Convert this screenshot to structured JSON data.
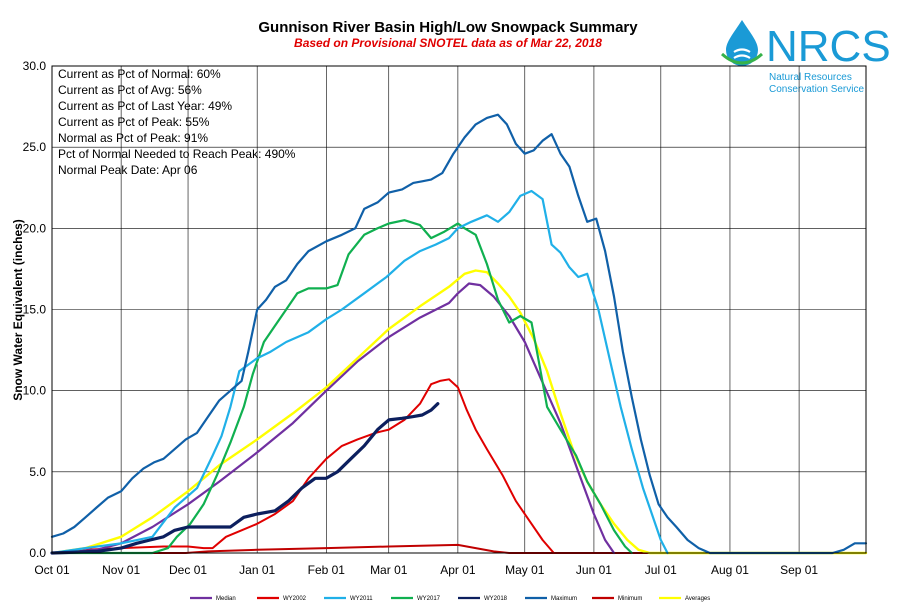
{
  "chart_data": {
    "type": "line",
    "title": "Gunnison River Basin High/Low Snowpack Summary",
    "subtitle": "Based on Provisional SNOTEL data as of Mar 22, 2018",
    "ylabel": "Snow Water Equivalent (inches)",
    "xlabel": "",
    "ylim": [
      0,
      30
    ],
    "yticks": [
      "0.0",
      "5.0",
      "10.0",
      "15.0",
      "20.0",
      "25.0",
      "30.0"
    ],
    "xlim": [
      0,
      365
    ],
    "xticks": [
      {
        "day": 0,
        "label": "Oct 01"
      },
      {
        "day": 31,
        "label": "Nov 01"
      },
      {
        "day": 61,
        "label": "Dec 01"
      },
      {
        "day": 92,
        "label": "Jan 01"
      },
      {
        "day": 123,
        "label": "Feb 01"
      },
      {
        "day": 151,
        "label": "Mar 01"
      },
      {
        "day": 182,
        "label": "Apr 01"
      },
      {
        "day": 212,
        "label": "May 01"
      },
      {
        "day": 243,
        "label": "Jun 01"
      },
      {
        "day": 273,
        "label": "Jul 01"
      },
      {
        "day": 304,
        "label": "Aug 01"
      },
      {
        "day": 335,
        "label": "Sep 01"
      }
    ],
    "grid": true,
    "stats": [
      "Current  as Pct of Normal: 60%",
      "Current  as Pct of Avg: 56%",
      "Current  as Pct of Last Year: 49%",
      "Current  as Pct of Peak: 55%",
      "Normal  as Pct of Peak: 91%",
      "Pct of Normal Needed  to Reach Peak: 490%",
      "Normal  Peak Date: Apr 06"
    ],
    "series": [
      {
        "name": "Median",
        "color": "#7030a0",
        "width": 2.2,
        "points": [
          [
            0,
            0
          ],
          [
            20,
            0.2
          ],
          [
            31,
            0.6
          ],
          [
            45,
            1.6
          ],
          [
            61,
            3.0
          ],
          [
            75,
            4.4
          ],
          [
            92,
            6.2
          ],
          [
            108,
            8.0
          ],
          [
            123,
            10.0
          ],
          [
            137,
            11.8
          ],
          [
            151,
            13.3
          ],
          [
            165,
            14.5
          ],
          [
            178,
            15.4
          ],
          [
            182,
            16.0
          ],
          [
            187,
            16.6
          ],
          [
            192,
            16.5
          ],
          [
            198,
            15.8
          ],
          [
            205,
            14.6
          ],
          [
            212,
            13.0
          ],
          [
            220,
            10.5
          ],
          [
            228,
            8.0
          ],
          [
            236,
            5.0
          ],
          [
            243,
            2.4
          ],
          [
            248,
            0.8
          ],
          [
            252,
            0
          ]
        ]
      },
      {
        "name": "WY2002",
        "color": "#e00000",
        "width": 2,
        "points": [
          [
            0,
            0
          ],
          [
            15,
            0.2
          ],
          [
            31,
            0.3
          ],
          [
            50,
            0.4
          ],
          [
            61,
            0.4
          ],
          [
            68,
            0.3
          ],
          [
            72,
            0.3
          ],
          [
            78,
            1.0
          ],
          [
            85,
            1.4
          ],
          [
            92,
            1.8
          ],
          [
            100,
            2.4
          ],
          [
            108,
            3.2
          ],
          [
            115,
            4.6
          ],
          [
            123,
            5.8
          ],
          [
            130,
            6.6
          ],
          [
            137,
            7.0
          ],
          [
            145,
            7.4
          ],
          [
            151,
            7.6
          ],
          [
            158,
            8.2
          ],
          [
            165,
            9.2
          ],
          [
            170,
            10.4
          ],
          [
            174,
            10.6
          ],
          [
            178,
            10.7
          ],
          [
            182,
            10.2
          ],
          [
            186,
            8.8
          ],
          [
            190,
            7.6
          ],
          [
            195,
            6.4
          ],
          [
            202,
            4.8
          ],
          [
            208,
            3.2
          ],
          [
            215,
            1.8
          ],
          [
            220,
            0.8
          ],
          [
            225,
            0
          ]
        ]
      },
      {
        "name": "WY2011",
        "color": "#20b0e8",
        "width": 2.2,
        "points": [
          [
            0,
            0
          ],
          [
            15,
            0.3
          ],
          [
            31,
            0.6
          ],
          [
            45,
            1.0
          ],
          [
            55,
            2.8
          ],
          [
            65,
            4.0
          ],
          [
            72,
            6.0
          ],
          [
            76,
            7.2
          ],
          [
            80,
            9.0
          ],
          [
            84,
            11.2
          ],
          [
            92,
            12.0
          ],
          [
            98,
            12.4
          ],
          [
            105,
            13.0
          ],
          [
            115,
            13.6
          ],
          [
            123,
            14.4
          ],
          [
            130,
            15.0
          ],
          [
            140,
            16.0
          ],
          [
            150,
            17.0
          ],
          [
            158,
            18.0
          ],
          [
            165,
            18.6
          ],
          [
            172,
            19.0
          ],
          [
            178,
            19.4
          ],
          [
            182,
            20.0
          ],
          [
            188,
            20.4
          ],
          [
            195,
            20.8
          ],
          [
            200,
            20.4
          ],
          [
            205,
            21.0
          ],
          [
            210,
            22.0
          ],
          [
            215,
            22.3
          ],
          [
            220,
            21.8
          ],
          [
            224,
            19.0
          ],
          [
            228,
            18.5
          ],
          [
            232,
            17.6
          ],
          [
            236,
            17.0
          ],
          [
            240,
            17.2
          ],
          [
            245,
            15.0
          ],
          [
            250,
            12.0
          ],
          [
            255,
            9.0
          ],
          [
            260,
            6.4
          ],
          [
            265,
            4.0
          ],
          [
            270,
            2.0
          ],
          [
            273,
            0.8
          ],
          [
            276,
            0
          ]
        ]
      },
      {
        "name": "WY2017",
        "color": "#10b050",
        "width": 2.2,
        "points": [
          [
            0,
            0
          ],
          [
            31,
            0
          ],
          [
            45,
            0
          ],
          [
            52,
            0.3
          ],
          [
            56,
            1.0
          ],
          [
            62,
            1.8
          ],
          [
            68,
            3.0
          ],
          [
            74,
            4.8
          ],
          [
            80,
            6.8
          ],
          [
            86,
            9.0
          ],
          [
            90,
            11.0
          ],
          [
            95,
            13.0
          ],
          [
            100,
            14.0
          ],
          [
            105,
            15.0
          ],
          [
            110,
            16.0
          ],
          [
            115,
            16.3
          ],
          [
            123,
            16.3
          ],
          [
            128,
            16.5
          ],
          [
            133,
            18.4
          ],
          [
            140,
            19.6
          ],
          [
            146,
            20.0
          ],
          [
            151,
            20.3
          ],
          [
            158,
            20.5
          ],
          [
            165,
            20.2
          ],
          [
            170,
            19.4
          ],
          [
            176,
            19.8
          ],
          [
            182,
            20.3
          ],
          [
            185,
            20.0
          ],
          [
            190,
            19.6
          ],
          [
            195,
            17.8
          ],
          [
            200,
            15.6
          ],
          [
            205,
            14.2
          ],
          [
            210,
            14.6
          ],
          [
            215,
            14.2
          ],
          [
            218,
            12.0
          ],
          [
            222,
            9.0
          ],
          [
            228,
            7.6
          ],
          [
            235,
            6.0
          ],
          [
            240,
            4.4
          ],
          [
            246,
            3.0
          ],
          [
            252,
            1.4
          ],
          [
            257,
            0.4
          ],
          [
            260,
            0
          ]
        ]
      },
      {
        "name": "WY2018",
        "color": "#0c1f5e",
        "width": 3.2,
        "points": [
          [
            0,
            0
          ],
          [
            20,
            0.1
          ],
          [
            31,
            0.3
          ],
          [
            38,
            0.6
          ],
          [
            44,
            0.8
          ],
          [
            50,
            1.0
          ],
          [
            55,
            1.4
          ],
          [
            61,
            1.6
          ],
          [
            70,
            1.6
          ],
          [
            80,
            1.6
          ],
          [
            86,
            2.2
          ],
          [
            92,
            2.4
          ],
          [
            100,
            2.6
          ],
          [
            106,
            3.2
          ],
          [
            112,
            4.0
          ],
          [
            118,
            4.6
          ],
          [
            123,
            4.6
          ],
          [
            128,
            5.0
          ],
          [
            134,
            5.8
          ],
          [
            140,
            6.6
          ],
          [
            146,
            7.6
          ],
          [
            151,
            8.2
          ],
          [
            157,
            8.3
          ],
          [
            162,
            8.4
          ],
          [
            166,
            8.5
          ],
          [
            170,
            8.8
          ],
          [
            173,
            9.2
          ]
        ]
      },
      {
        "name": "Maximum",
        "color": "#1060a8",
        "width": 2.2,
        "points": [
          [
            0,
            1.0
          ],
          [
            5,
            1.2
          ],
          [
            10,
            1.6
          ],
          [
            15,
            2.2
          ],
          [
            20,
            2.8
          ],
          [
            25,
            3.4
          ],
          [
            31,
            3.8
          ],
          [
            36,
            4.6
          ],
          [
            41,
            5.2
          ],
          [
            46,
            5.6
          ],
          [
            50,
            5.8
          ],
          [
            55,
            6.4
          ],
          [
            60,
            7.0
          ],
          [
            65,
            7.4
          ],
          [
            70,
            8.4
          ],
          [
            75,
            9.4
          ],
          [
            80,
            10.0
          ],
          [
            85,
            10.6
          ],
          [
            88,
            12.4
          ],
          [
            92,
            15.0
          ],
          [
            96,
            15.6
          ],
          [
            100,
            16.4
          ],
          [
            105,
            16.8
          ],
          [
            110,
            17.8
          ],
          [
            115,
            18.6
          ],
          [
            123,
            19.2
          ],
          [
            130,
            19.6
          ],
          [
            136,
            20.0
          ],
          [
            140,
            21.2
          ],
          [
            146,
            21.6
          ],
          [
            151,
            22.2
          ],
          [
            157,
            22.4
          ],
          [
            162,
            22.8
          ],
          [
            166,
            22.9
          ],
          [
            170,
            23.0
          ],
          [
            175,
            23.4
          ],
          [
            180,
            24.6
          ],
          [
            185,
            25.6
          ],
          [
            190,
            26.4
          ],
          [
            195,
            26.8
          ],
          [
            200,
            27.0
          ],
          [
            204,
            26.4
          ],
          [
            208,
            25.2
          ],
          [
            212,
            24.6
          ],
          [
            216,
            24.8
          ],
          [
            220,
            25.4
          ],
          [
            224,
            25.8
          ],
          [
            228,
            24.6
          ],
          [
            232,
            23.8
          ],
          [
            236,
            22.0
          ],
          [
            240,
            20.4
          ],
          [
            244,
            20.6
          ],
          [
            248,
            18.6
          ],
          [
            252,
            15.8
          ],
          [
            256,
            12.4
          ],
          [
            260,
            9.6
          ],
          [
            264,
            7.0
          ],
          [
            268,
            4.8
          ],
          [
            272,
            3.0
          ],
          [
            276,
            2.2
          ],
          [
            280,
            1.6
          ],
          [
            285,
            0.8
          ],
          [
            290,
            0.3
          ],
          [
            295,
            0
          ],
          [
            350,
            0
          ],
          [
            355,
            0.2
          ],
          [
            360,
            0.6
          ],
          [
            365,
            0.6
          ]
        ]
      },
      {
        "name": "Minimum",
        "color": "#c00000",
        "width": 2,
        "points": [
          [
            0,
            0
          ],
          [
            60,
            0
          ],
          [
            70,
            0.1
          ],
          [
            92,
            0.2
          ],
          [
            123,
            0.3
          ],
          [
            151,
            0.4
          ],
          [
            182,
            0.5
          ],
          [
            190,
            0.3
          ],
          [
            198,
            0.1
          ],
          [
            205,
            0
          ],
          [
            365,
            0
          ]
        ]
      },
      {
        "name": "Averages",
        "color": "#ffff00",
        "width": 2.4,
        "points": [
          [
            0,
            0
          ],
          [
            15,
            0.3
          ],
          [
            31,
            1.0
          ],
          [
            45,
            2.2
          ],
          [
            61,
            3.8
          ],
          [
            75,
            5.4
          ],
          [
            92,
            7.0
          ],
          [
            108,
            8.6
          ],
          [
            123,
            10.2
          ],
          [
            137,
            12.0
          ],
          [
            151,
            13.8
          ],
          [
            165,
            15.2
          ],
          [
            178,
            16.4
          ],
          [
            185,
            17.2
          ],
          [
            190,
            17.4
          ],
          [
            195,
            17.3
          ],
          [
            200,
            16.6
          ],
          [
            205,
            15.8
          ],
          [
            210,
            14.8
          ],
          [
            216,
            13.2
          ],
          [
            222,
            11.2
          ],
          [
            228,
            8.6
          ],
          [
            234,
            6.2
          ],
          [
            240,
            4.4
          ],
          [
            246,
            3.0
          ],
          [
            252,
            1.8
          ],
          [
            258,
            0.8
          ],
          [
            263,
            0.2
          ],
          [
            268,
            0
          ],
          [
            365,
            0
          ]
        ]
      }
    ]
  },
  "logo": {
    "letters": "NRCS",
    "line1": "Natural Resources",
    "line2": "Conservation Service"
  }
}
